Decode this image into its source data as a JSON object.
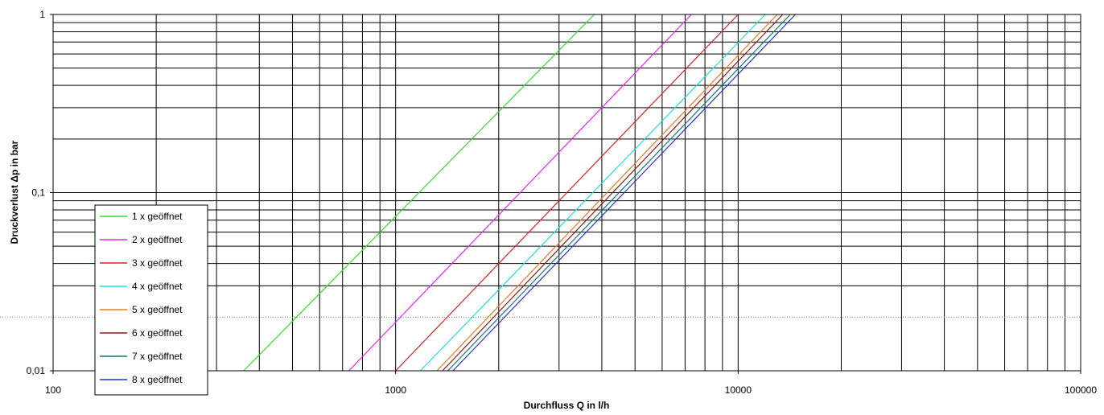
{
  "chart_data": {
    "type": "line",
    "xlabel": "Durchfluss Q in l/h",
    "ylabel": "Druckverlust Δp in bar",
    "x_scale": "log",
    "y_scale": "log",
    "xlim": [
      100,
      100000
    ],
    "ylim": [
      0.01,
      1
    ],
    "x_tick_labels": [
      "100",
      "1000",
      "10000",
      "100000"
    ],
    "y_tick_labels": [
      "0,01",
      "0,1",
      "1"
    ],
    "grid": true,
    "legend_position": "bottom-left",
    "series": [
      {
        "name": "1 x geöffnet",
        "color": "#33dd33",
        "x": [
          360,
          3800
        ],
        "y": [
          0.01,
          1
        ]
      },
      {
        "name": "2 x geöffnet",
        "color": "#ee22ee",
        "x": [
          730,
          7300
        ],
        "y": [
          0.01,
          1
        ]
      },
      {
        "name": "3 x geöffnet",
        "color": "#dd2222",
        "x": [
          1000,
          10000
        ],
        "y": [
          0.01,
          1
        ]
      },
      {
        "name": "4 x geöffnet",
        "color": "#22dddd",
        "x": [
          1180,
          12000
        ],
        "y": [
          0.01,
          1
        ]
      },
      {
        "name": "5 x geöffnet",
        "color": "#ee7722",
        "x": [
          1320,
          13000
        ],
        "y": [
          0.01,
          1
        ]
      },
      {
        "name": "6 x geöffnet",
        "color": "#8b1a1a",
        "x": [
          1370,
          13500
        ],
        "y": [
          0.01,
          1
        ]
      },
      {
        "name": "7 x geöffnet",
        "color": "#117777",
        "x": [
          1420,
          14200
        ],
        "y": [
          0.01,
          1
        ]
      },
      {
        "name": "8 x geöffnet",
        "color": "#2233cc",
        "x": [
          1470,
          14700
        ],
        "y": [
          0.01,
          1
        ]
      }
    ]
  }
}
